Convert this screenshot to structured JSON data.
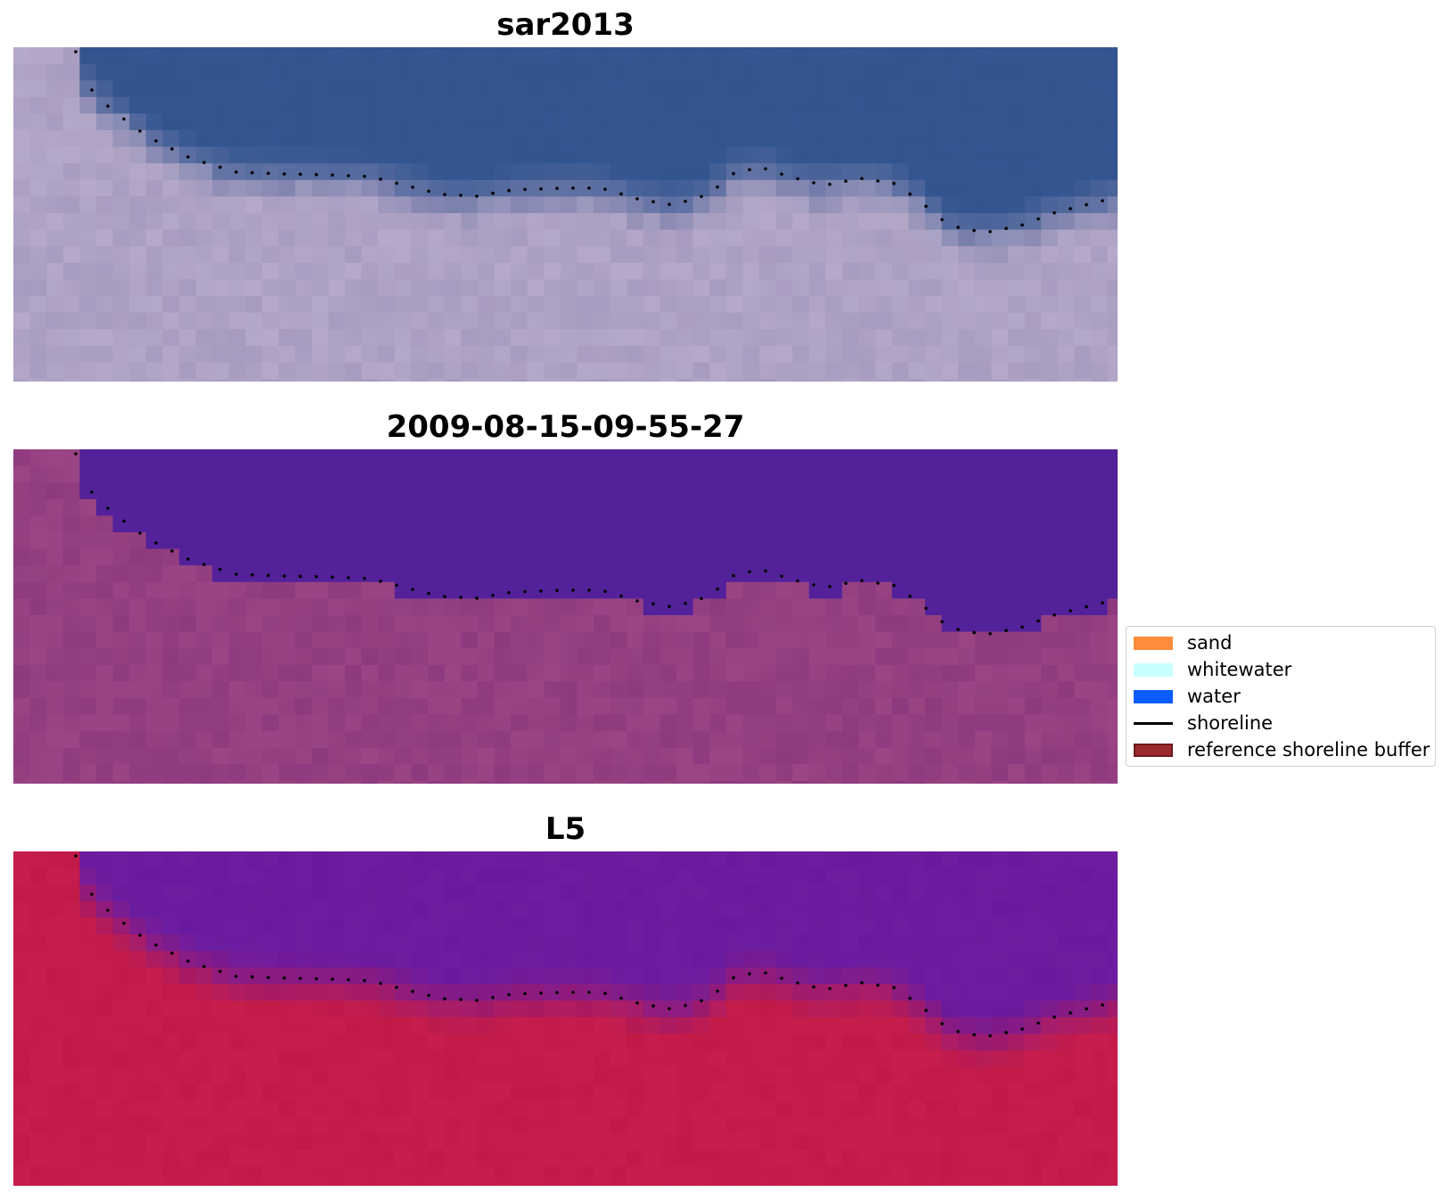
{
  "panels": [
    {
      "title": "sar2013",
      "style": "rgb"
    },
    {
      "title": "2009-08-15-09-55-27",
      "style": "classified"
    },
    {
      "title": "L5",
      "style": "false-color"
    }
  ],
  "legend": {
    "items": [
      {
        "label": "sand",
        "kind": "patch",
        "color": "#ff8c3a"
      },
      {
        "label": "whitewater",
        "kind": "patch",
        "color": "#c9ffff"
      },
      {
        "label": "water",
        "kind": "patch",
        "color": "#0a5cff"
      },
      {
        "label": "shoreline",
        "kind": "line",
        "color": "#000000"
      },
      {
        "label": "reference shoreline buffer",
        "kind": "patch",
        "color": "#9b2a2e"
      }
    ]
  },
  "colors": {
    "panel1_water": "#33558f",
    "panel1_land": "#a79bbf",
    "panel2_water": "#53229a",
    "panel2_land": "#8e3a7e",
    "panel3_water": "#6a1a9e",
    "panel3_land": "#c21a48",
    "shoreline_dots": "#000000"
  }
}
